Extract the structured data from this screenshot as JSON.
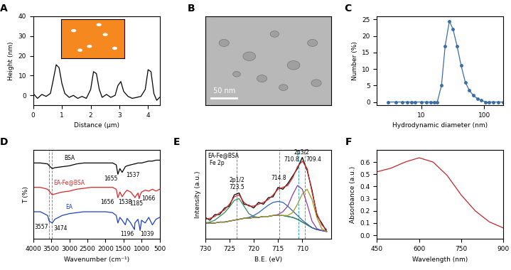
{
  "chart_data": [
    {
      "panel": "A",
      "type": "line",
      "x_label": "Distance (μm)",
      "y_label": "Height (nm)",
      "xlim": [
        0,
        4.4
      ],
      "ylim": [
        -5,
        40
      ],
      "xticks": [
        0,
        1,
        2,
        3,
        4
      ],
      "yticks": [
        0,
        10,
        20,
        30,
        40
      ],
      "inset": {
        "type": "image"
      },
      "series": [
        {
          "color": "#000000",
          "line_style": "solid",
          "x": [
            0,
            0.15,
            0.3,
            0.45,
            0.6,
            0.7,
            0.8,
            0.9,
            1.0,
            1.1,
            1.25,
            1.4,
            1.55,
            1.7,
            1.85,
            2.0,
            2.1,
            2.2,
            2.3,
            2.4,
            2.55,
            2.7,
            2.85,
            2.95,
            3.05,
            3.15,
            3.3,
            3.45,
            3.6,
            3.75,
            3.9,
            4.0,
            4.1,
            4.2,
            4.3,
            4.4
          ],
          "values": [
            1,
            -1.5,
            0.5,
            -0.5,
            1,
            8,
            15.5,
            14,
            6,
            1,
            -1,
            0,
            -1.5,
            -0.5,
            -1.5,
            3,
            12,
            11,
            3,
            -1,
            0.5,
            -1,
            0,
            5,
            7,
            2,
            -0.5,
            -1.5,
            -1,
            -0.5,
            3,
            13,
            12,
            1,
            -2.5,
            -1
          ]
        }
      ]
    },
    {
      "panel": "B",
      "type": "image",
      "scale_bar": "50 nm"
    },
    {
      "panel": "C",
      "type": "line",
      "x_label": "Hydrodynamic diameter (nm)",
      "y_label": "Number (%)",
      "log": "x",
      "xlim": [
        2,
        200
      ],
      "ylim": [
        -1,
        26
      ],
      "xticks": [
        10,
        100
      ],
      "yticks": [
        0,
        5,
        10,
        15,
        20,
        25
      ],
      "series": [
        {
          "color": "#3a6ea5",
          "line_style": "solid",
          "marker": "circle",
          "x": [
            3,
            4,
            5,
            6,
            7,
            8,
            10,
            12,
            14,
            16,
            18,
            21,
            24,
            28,
            32,
            37,
            43,
            50,
            58,
            67,
            78,
            90,
            105,
            120,
            140,
            165,
            200
          ],
          "values": [
            0,
            0,
            0,
            0,
            0,
            0,
            0,
            0,
            0,
            0,
            0,
            5,
            17,
            24.5,
            22,
            17,
            11,
            6,
            3.5,
            2,
            1,
            0.5,
            0,
            0,
            0,
            0,
            0
          ]
        }
      ]
    },
    {
      "panel": "D",
      "type": "line",
      "x_label": "Wavenumber (cm⁻¹)",
      "y_label": "T (%)",
      "xlim": [
        4000,
        500
      ],
      "ylim": [
        5,
        100
      ],
      "xticks": [
        4000,
        3500,
        3000,
        2500,
        2000,
        1500,
        1000,
        500
      ],
      "tick_labels": "x",
      "vlines": [
        3557,
        3474
      ],
      "x": [
        4000,
        3800,
        3600,
        3557,
        3474,
        3400,
        3200,
        3000,
        2800,
        2600,
        2400,
        2200,
        2000,
        1800,
        1700,
        1655,
        1600,
        1537,
        1450,
        1400,
        1300,
        1196,
        1185,
        1100,
        1066,
        1039,
        1000,
        900,
        800,
        700,
        600,
        500
      ],
      "series": [
        {
          "name": "BSA",
          "color": "#000000",
          "line_style": "solid",
          "values": [
            86,
            86,
            85,
            83,
            80,
            81,
            82,
            83,
            85,
            86,
            86,
            86,
            86,
            86,
            84,
            74,
            80,
            76,
            82,
            83,
            84,
            85,
            85,
            86,
            86,
            86,
            86,
            87,
            88,
            88,
            89,
            89
          ]
        },
        {
          "name": "EA-Fe@BSA",
          "color": "#d62728",
          "line_style": "solid",
          "values": [
            60,
            60,
            58,
            56,
            52,
            53,
            55,
            56,
            58,
            59,
            60,
            60,
            60,
            60,
            58,
            49,
            55,
            50,
            55,
            57,
            55,
            50,
            49,
            54,
            48,
            52,
            55,
            57,
            56,
            58,
            56,
            58
          ]
        },
        {
          "name": "EA",
          "color": "#1f3fbf",
          "line_style": "solid",
          "values": [
            34,
            34,
            30,
            24,
            22,
            26,
            30,
            32,
            33,
            34,
            34,
            34,
            34,
            33,
            30,
            22,
            28,
            25,
            20,
            27,
            22,
            15,
            22,
            26,
            20,
            14,
            25,
            22,
            28,
            20,
            26,
            28
          ]
        }
      ],
      "annotations": [
        {
          "text": "BSA",
          "x": 3000,
          "y": 91,
          "color": "#000000"
        },
        {
          "text": "EA-Fe@BSA",
          "x": 3000,
          "y": 65,
          "color": "#d62728"
        },
        {
          "text": "EA",
          "x": 3000,
          "y": 39,
          "color": "#1f3fbf"
        },
        {
          "text": "1655",
          "x": 1850,
          "y": 69,
          "color": "#000000"
        },
        {
          "text": "1537",
          "x": 1250,
          "y": 73,
          "color": "#000000"
        },
        {
          "text": "1656",
          "x": 1950,
          "y": 44,
          "color": "#000000"
        },
        {
          "text": "1538",
          "x": 1450,
          "y": 44,
          "color": "#000000"
        },
        {
          "text": "1185",
          "x": 1150,
          "y": 43,
          "color": "#000000"
        },
        {
          "text": "1066",
          "x": 800,
          "y": 48,
          "color": "#000000"
        },
        {
          "text": "3557",
          "x": 3780,
          "y": 18,
          "color": "#000000"
        },
        {
          "text": "3474",
          "x": 3250,
          "y": 16,
          "color": "#000000"
        },
        {
          "text": "1196",
          "x": 1400,
          "y": 10,
          "color": "#000000"
        },
        {
          "text": "1039",
          "x": 850,
          "y": 10,
          "color": "#000000"
        }
      ]
    },
    {
      "panel": "E",
      "type": "line",
      "x_label": "B.E. (eV)",
      "y_label": "Intensity (a.u.)",
      "xlim": [
        730,
        704
      ],
      "ylim": [
        0.05,
        1.0
      ],
      "xticks": [
        730,
        725,
        720,
        715,
        710
      ],
      "tick_labels": "x",
      "vlines": [
        723.5,
        714.8,
        710.8,
        709.4
      ],
      "x": [
        730,
        729,
        728,
        727,
        726,
        725,
        724,
        723,
        722,
        721,
        720,
        719,
        718,
        717,
        716,
        715,
        714,
        713,
        712,
        711,
        710,
        709,
        708,
        707,
        706,
        705
      ],
      "series": [
        {
          "color": "#000000",
          "line_style": "solid",
          "values": [
            0.28,
            0.25,
            0.31,
            0.31,
            0.38,
            0.4,
            0.52,
            0.54,
            0.42,
            0.41,
            0.38,
            0.44,
            0.42,
            0.49,
            0.5,
            0.6,
            0.58,
            0.64,
            0.72,
            0.8,
            0.92,
            0.78,
            0.57,
            0.3,
            0.22,
            0.13
          ]
        },
        {
          "color": "#2f4f4f",
          "line_style": "solid",
          "values": [
            0.22,
            0.22,
            0.22,
            0.23,
            0.23,
            0.24,
            0.25,
            0.26,
            0.27,
            0.27,
            0.28,
            0.28,
            0.29,
            0.29,
            0.3,
            0.3,
            0.3,
            0.29,
            0.28,
            0.26,
            0.23,
            0.2,
            0.17,
            0.15,
            0.14,
            0.13
          ]
        },
        {
          "color": "#2e8b57",
          "line_style": "solid",
          "values": [
            0.22,
            0.23,
            0.25,
            0.29,
            0.33,
            0.39,
            0.46,
            0.48,
            0.4,
            0.32,
            0.29,
            0.28,
            0.29,
            0.29,
            0.3,
            0.3,
            0.3,
            0.29,
            0.28,
            0.26,
            0.23,
            0.2,
            0.17,
            0.15,
            0.14,
            0.13
          ]
        },
        {
          "color": "#3060c0",
          "line_style": "solid",
          "values": [
            0.22,
            0.22,
            0.22,
            0.23,
            0.23,
            0.24,
            0.25,
            0.26,
            0.27,
            0.28,
            0.3,
            0.33,
            0.37,
            0.41,
            0.44,
            0.45,
            0.44,
            0.4,
            0.35,
            0.3,
            0.25,
            0.21,
            0.17,
            0.15,
            0.14,
            0.13
          ]
        },
        {
          "color": "#8a3fa0",
          "line_style": "solid",
          "values": [
            0.22,
            0.22,
            0.22,
            0.23,
            0.23,
            0.24,
            0.25,
            0.26,
            0.27,
            0.27,
            0.28,
            0.28,
            0.29,
            0.29,
            0.3,
            0.31,
            0.34,
            0.4,
            0.52,
            0.62,
            0.58,
            0.42,
            0.24,
            0.16,
            0.14,
            0.13
          ]
        },
        {
          "color": "#9a9a20",
          "line_style": "solid",
          "values": [
            0.22,
            0.22,
            0.22,
            0.23,
            0.23,
            0.24,
            0.25,
            0.26,
            0.27,
            0.27,
            0.28,
            0.28,
            0.29,
            0.29,
            0.3,
            0.3,
            0.3,
            0.3,
            0.33,
            0.42,
            0.53,
            0.58,
            0.47,
            0.28,
            0.16,
            0.13
          ]
        },
        {
          "color": "#d62728",
          "line_style": "solid",
          "values": [
            0.26,
            0.27,
            0.29,
            0.33,
            0.36,
            0.42,
            0.5,
            0.52,
            0.44,
            0.4,
            0.4,
            0.42,
            0.44,
            0.47,
            0.52,
            0.58,
            0.6,
            0.62,
            0.7,
            0.82,
            0.88,
            0.8,
            0.55,
            0.32,
            0.2,
            0.15
          ]
        }
      ],
      "annotations": [
        {
          "text": "EA-Fe@BSA",
          "x": 726.3,
          "y": 0.94,
          "color": "#000000"
        },
        {
          "text": "Fe 2p",
          "x": 727.6,
          "y": 0.86,
          "color": "#000000"
        },
        {
          "text": "2p1/2",
          "x": 723.5,
          "y": 0.68,
          "color": "#000000"
        },
        {
          "text": "723.5",
          "x": 723.5,
          "y": 0.6,
          "color": "#000000"
        },
        {
          "text": "714.8",
          "x": 714.8,
          "y": 0.7,
          "color": "#000000"
        },
        {
          "text": "2p3/2",
          "x": 710.1,
          "y": 0.97,
          "color": "#000000"
        },
        {
          "text": "710.8",
          "x": 712.2,
          "y": 0.9,
          "color": "#000000"
        },
        {
          "text": "709.4",
          "x": 707.6,
          "y": 0.9,
          "color": "#000000"
        }
      ]
    },
    {
      "panel": "F",
      "type": "line",
      "x_label": "Wavelength (nm)",
      "y_label": "Absorbance (a.u.)",
      "xlim": [
        450,
        900
      ],
      "ylim": [
        -0.03,
        0.7
      ],
      "xticks": [
        450,
        600,
        750,
        900
      ],
      "yticks": [
        {
          "value": 0.0,
          "label": "0.0"
        },
        {
          "value": 0.1,
          "label": "0.1"
        },
        {
          "value": 0.2,
          "label": "0.2"
        },
        {
          "value": 0.3,
          "label": "0.3"
        },
        {
          "value": 0.4,
          "label": "0.4"
        },
        {
          "value": 0.5,
          "label": "0.5"
        },
        {
          "value": 0.6,
          "label": "0.6"
        }
      ],
      "series": [
        {
          "color": "#c0282d",
          "line_style": "solid",
          "x": [
            450,
            500,
            550,
            600,
            650,
            700,
            750,
            800,
            850,
            900
          ],
          "values": [
            0.52,
            0.55,
            0.6,
            0.635,
            0.6,
            0.49,
            0.33,
            0.2,
            0.11,
            0.06
          ]
        }
      ]
    }
  ]
}
